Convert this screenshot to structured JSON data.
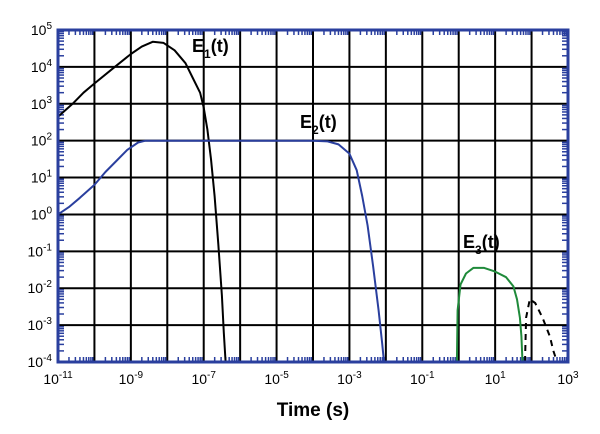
{
  "chart_data": {
    "type": "line",
    "title": "",
    "xlabel": "Time (s)",
    "ylabel": "",
    "xscale": "log",
    "yscale": "log",
    "xlim_exp": [
      -11,
      3
    ],
    "ylim_exp": [
      -4,
      5
    ],
    "grid": true,
    "x_tick_labels": [
      {
        "base": "10",
        "exp": "-11"
      },
      {
        "base": "10",
        "exp": "-9"
      },
      {
        "base": "10",
        "exp": "-7"
      },
      {
        "base": "10",
        "exp": "-5"
      },
      {
        "base": "10",
        "exp": "-3"
      },
      {
        "base": "10",
        "exp": "-1"
      },
      {
        "base": "10",
        "exp": "1"
      },
      {
        "base": "10",
        "exp": "3"
      }
    ],
    "y_tick_labels": [
      {
        "base": "10",
        "exp": "5"
      },
      {
        "base": "10",
        "exp": "4"
      },
      {
        "base": "10",
        "exp": "3"
      },
      {
        "base": "10",
        "exp": "2"
      },
      {
        "base": "10",
        "exp": "1"
      },
      {
        "base": "10",
        "exp": "0"
      },
      {
        "base": "10",
        "exp": "-1"
      },
      {
        "base": "10",
        "exp": "-2"
      },
      {
        "base": "10",
        "exp": "-3"
      },
      {
        "base": "10",
        "exp": "-4"
      }
    ],
    "series_note": "points are [log10(time), log10(value)]",
    "series": [
      {
        "name": "E1(t)",
        "label_main": "E",
        "label_sub": "1",
        "label_tail": "(t)",
        "color": "#000000",
        "dashed": false,
        "points": [
          [
            -11,
            2.65
          ],
          [
            -10.6,
            3.0
          ],
          [
            -10.3,
            3.3
          ],
          [
            -10,
            3.55
          ],
          [
            -9.5,
            3.95
          ],
          [
            -9,
            4.35
          ],
          [
            -8.7,
            4.55
          ],
          [
            -8.4,
            4.68
          ],
          [
            -8.1,
            4.65
          ],
          [
            -7.8,
            4.45
          ],
          [
            -7.5,
            4.1
          ],
          [
            -7.3,
            3.7
          ],
          [
            -7.1,
            3.3
          ],
          [
            -7.0,
            2.9
          ],
          [
            -6.9,
            2.3
          ],
          [
            -6.8,
            1.5
          ],
          [
            -6.7,
            0.5
          ],
          [
            -6.6,
            -0.8
          ],
          [
            -6.5,
            -2.2
          ],
          [
            -6.45,
            -3.2
          ],
          [
            -6.4,
            -4
          ]
        ]
      },
      {
        "name": "E2(t)",
        "label_main": "E",
        "label_sub": "2",
        "label_tail": "(t)",
        "color": "#2a3f9e",
        "dashed": false,
        "points": [
          [
            -11,
            0
          ],
          [
            -10.7,
            0.2
          ],
          [
            -10.4,
            0.45
          ],
          [
            -10,
            0.8
          ],
          [
            -9.7,
            1.15
          ],
          [
            -9.4,
            1.45
          ],
          [
            -9.1,
            1.75
          ],
          [
            -8.8,
            1.95
          ],
          [
            -8.6,
            2
          ],
          [
            -4,
            2
          ],
          [
            -3.6,
            1.98
          ],
          [
            -3.3,
            1.9
          ],
          [
            -3.0,
            1.65
          ],
          [
            -2.8,
            1.2
          ],
          [
            -2.65,
            0.5
          ],
          [
            -2.5,
            -0.3
          ],
          [
            -2.35,
            -1.4
          ],
          [
            -2.2,
            -2.6
          ],
          [
            -2.1,
            -3.5
          ],
          [
            -2.05,
            -4
          ]
        ]
      },
      {
        "name": "E3(t)",
        "label_main": "E",
        "label_sub": "3",
        "label_tail": "(t)",
        "color": "#1f8a3a",
        "dashed": false,
        "points": [
          [
            -0.05,
            -4
          ],
          [
            -0.03,
            -2.6
          ],
          [
            0.05,
            -1.9
          ],
          [
            0.2,
            -1.6
          ],
          [
            0.4,
            -1.45
          ],
          [
            0.7,
            -1.45
          ],
          [
            1.0,
            -1.55
          ],
          [
            1.3,
            -1.7
          ],
          [
            1.5,
            -1.95
          ],
          [
            1.6,
            -2.3
          ],
          [
            1.68,
            -2.8
          ],
          [
            1.72,
            -3.3
          ],
          [
            1.75,
            -4
          ]
        ]
      },
      {
        "name": "E4(t) (unlabeled, dashed)",
        "color": "#000000",
        "dashed": true,
        "points": [
          [
            1.82,
            -4
          ],
          [
            1.85,
            -2.8
          ],
          [
            1.95,
            -2.3
          ],
          [
            2.1,
            -2.4
          ],
          [
            2.3,
            -2.8
          ],
          [
            2.5,
            -3.3
          ],
          [
            2.6,
            -3.7
          ],
          [
            2.7,
            -4
          ]
        ]
      }
    ]
  }
}
